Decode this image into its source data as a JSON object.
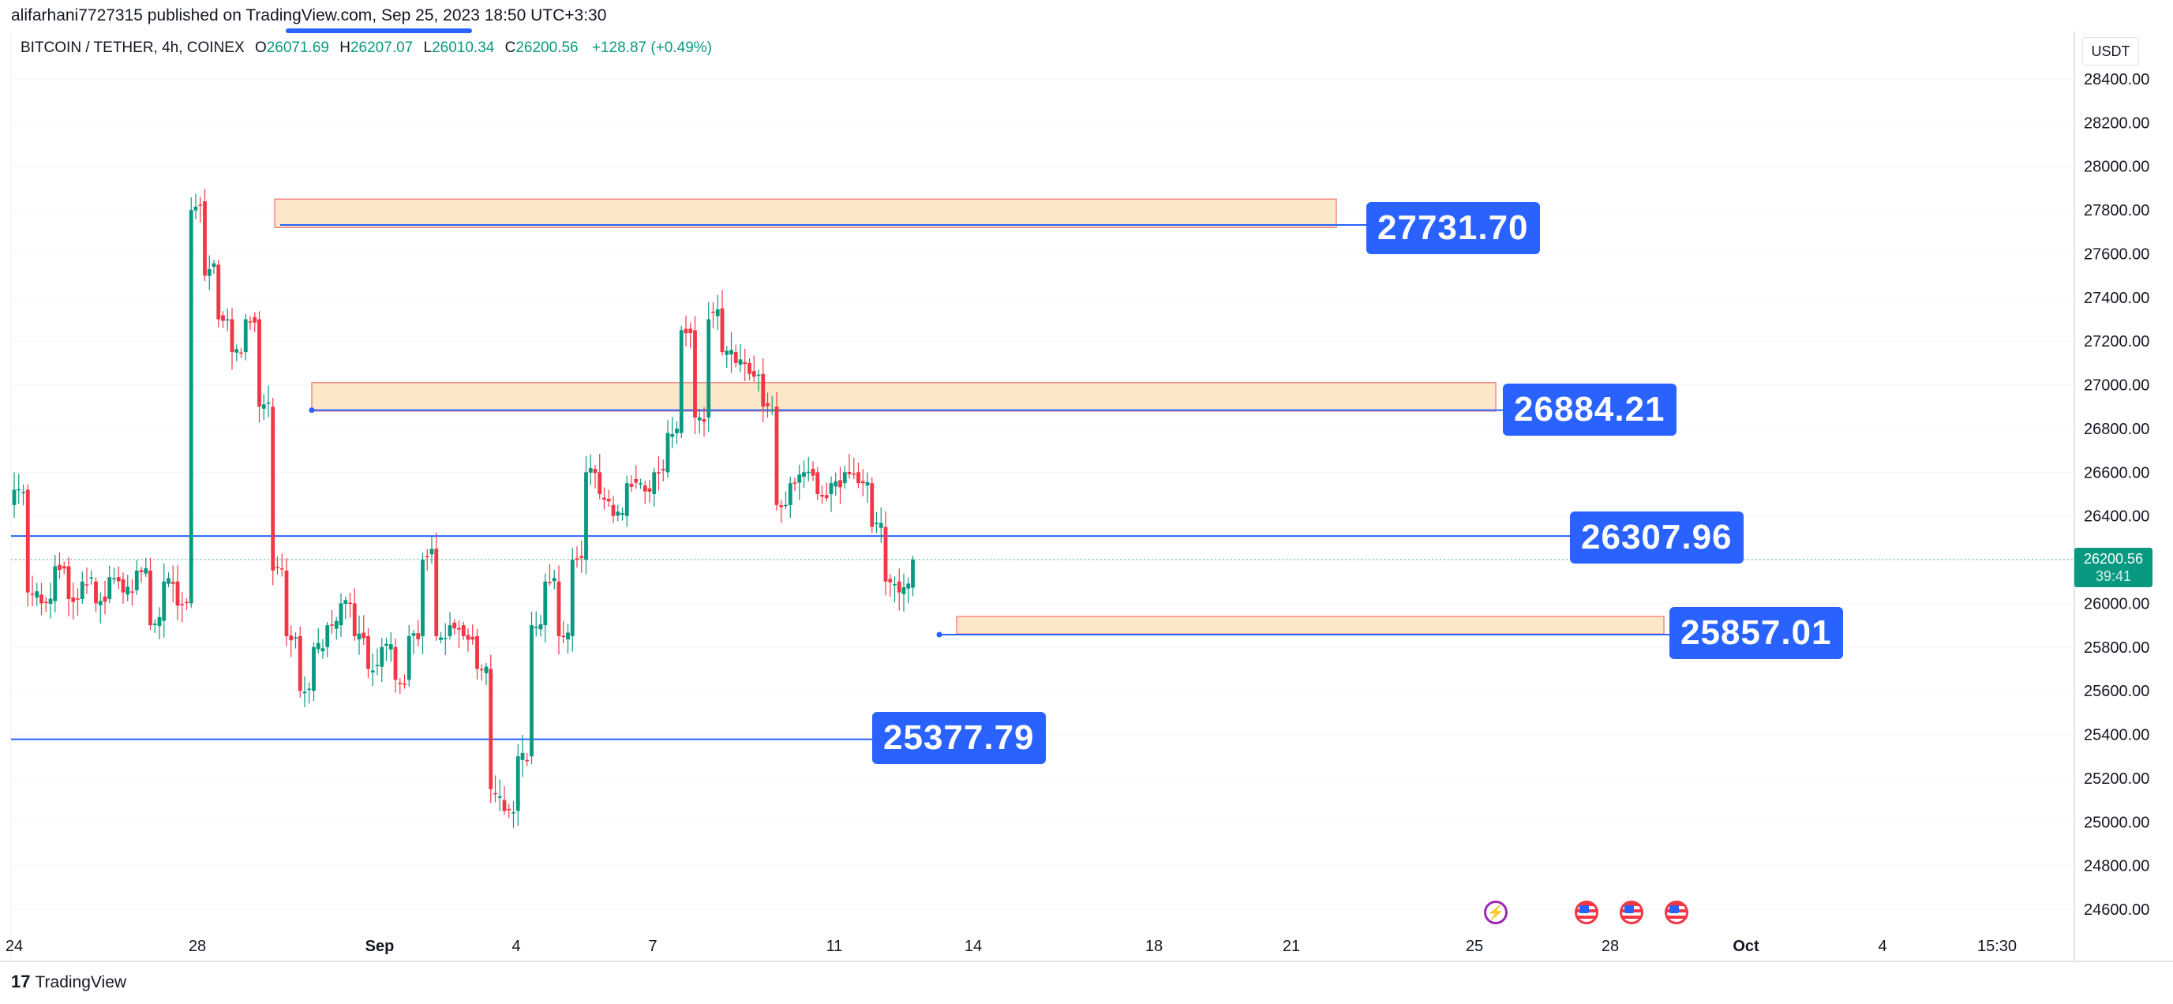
{
  "header": {
    "published_text": "alifarhani7727315 published on TradingView.com, Sep 25, 2023 18:50 UTC+3:30",
    "symbol": "BITCOIN / TETHER, 4h, COINEX",
    "open_label": "O",
    "open": "26071.69",
    "high_label": "H",
    "high": "26207.07",
    "low_label": "L",
    "low": "26010.34",
    "close_label": "C",
    "close": "26200.56",
    "change": "+128.87 (+0.49%)",
    "currency": "USDT"
  },
  "colors": {
    "up": "#089981",
    "down": "#f23645",
    "line": "#2962ff",
    "zone_fill": "#fde7c9",
    "zone_border": "#f28b82"
  },
  "chart_data": {
    "type": "candlestick",
    "y_ticks": [
      "28400.00",
      "28200.00",
      "28000.00",
      "27800.00",
      "27600.00",
      "27400.00",
      "27200.00",
      "27000.00",
      "26800.00",
      "26600.00",
      "26400.00",
      "26200.00",
      "26000.00",
      "25800.00",
      "25600.00",
      "25400.00",
      "25200.00",
      "25000.00",
      "24800.00",
      "24600.00"
    ],
    "ylim": [
      24500,
      28600
    ],
    "x_ticks": [
      "24",
      "28",
      "Sep",
      "4",
      "7",
      "11",
      "14",
      "18",
      "21",
      "25",
      "28",
      "Oct",
      "4",
      "15:30"
    ],
    "last_price": "26200.56",
    "countdown": "39:41",
    "levels": [
      {
        "label": "27731.70",
        "value": 27731.7
      },
      {
        "label": "26884.21",
        "value": 26884.21
      },
      {
        "label": "26307.96",
        "value": 26307.96
      },
      {
        "label": "25857.01",
        "value": 25857.01
      },
      {
        "label": "25377.79",
        "value": 25377.79
      }
    ],
    "zones": [
      {
        "top": 27850,
        "bottom": 27720
      },
      {
        "top": 27010,
        "bottom": 26880
      },
      {
        "top": 25940,
        "bottom": 25860
      }
    ],
    "anchors": [
      {
        "o": 26450,
        "c": 26520
      },
      {
        "o": 26520,
        "c": 26050
      },
      {
        "o": 26040,
        "c": 26000
      },
      {
        "o": 26010,
        "c": 26170
      },
      {
        "o": 26170,
        "c": 26020
      },
      {
        "o": 26020,
        "c": 26100
      },
      {
        "o": 26100,
        "c": 26000
      },
      {
        "o": 26020,
        "c": 26120
      },
      {
        "o": 26110,
        "c": 26050
      },
      {
        "o": 26060,
        "c": 26150
      },
      {
        "o": 26150,
        "c": 25900
      },
      {
        "o": 25920,
        "c": 26100
      },
      {
        "o": 26100,
        "c": 25990
      },
      {
        "o": 26000,
        "c": 27800
      },
      {
        "o": 27840,
        "c": 27500
      },
      {
        "o": 27550,
        "c": 27300
      },
      {
        "o": 27300,
        "c": 27150
      },
      {
        "o": 27150,
        "c": 27300
      },
      {
        "o": 27300,
        "c": 26900
      },
      {
        "o": 26900,
        "c": 26150
      },
      {
        "o": 26150,
        "c": 25850
      },
      {
        "o": 25850,
        "c": 25600
      },
      {
        "o": 25600,
        "c": 25800
      },
      {
        "o": 25800,
        "c": 25900
      },
      {
        "o": 25900,
        "c": 26000
      },
      {
        "o": 26000,
        "c": 25850
      },
      {
        "o": 25850,
        "c": 25700
      },
      {
        "o": 25710,
        "c": 25800
      },
      {
        "o": 25800,
        "c": 25650
      },
      {
        "o": 25650,
        "c": 25850
      },
      {
        "o": 25850,
        "c": 26200
      },
      {
        "o": 26250,
        "c": 25850
      },
      {
        "o": 25850,
        "c": 25900
      },
      {
        "o": 25900,
        "c": 25850
      },
      {
        "o": 25850,
        "c": 25700
      },
      {
        "o": 25700,
        "c": 25150
      },
      {
        "o": 25100,
        "c": 25050
      },
      {
        "o": 25050,
        "c": 25300
      },
      {
        "o": 25300,
        "c": 25900
      },
      {
        "o": 25900,
        "c": 26100
      },
      {
        "o": 26100,
        "c": 25850
      },
      {
        "o": 25850,
        "c": 26200
      },
      {
        "o": 26200,
        "c": 26600
      },
      {
        "o": 26600,
        "c": 26500
      },
      {
        "o": 26450,
        "c": 26400
      },
      {
        "o": 26400,
        "c": 26550
      },
      {
        "o": 26550,
        "c": 26550
      },
      {
        "o": 26500,
        "c": 26600
      },
      {
        "o": 26600,
        "c": 26780
      },
      {
        "o": 26780,
        "c": 27250
      },
      {
        "o": 27250,
        "c": 26850
      },
      {
        "o": 26850,
        "c": 27300
      },
      {
        "o": 27350,
        "c": 27150
      },
      {
        "o": 27150,
        "c": 27100
      },
      {
        "o": 27100,
        "c": 27050
      },
      {
        "o": 27050,
        "c": 26900
      },
      {
        "o": 26900,
        "c": 26450
      },
      {
        "o": 26450,
        "c": 26550
      },
      {
        "o": 26580,
        "c": 26600
      },
      {
        "o": 26600,
        "c": 26500
      },
      {
        "o": 26500,
        "c": 26550
      },
      {
        "o": 26550,
        "c": 26600
      },
      {
        "o": 26600,
        "c": 26550
      },
      {
        "o": 26550,
        "c": 26350
      },
      {
        "o": 26350,
        "c": 26100
      },
      {
        "o": 26100,
        "c": 26050
      },
      {
        "o": 26071.69,
        "c": 26200.56
      }
    ]
  },
  "footer": {
    "logo": "17",
    "brand": "TradingView"
  }
}
